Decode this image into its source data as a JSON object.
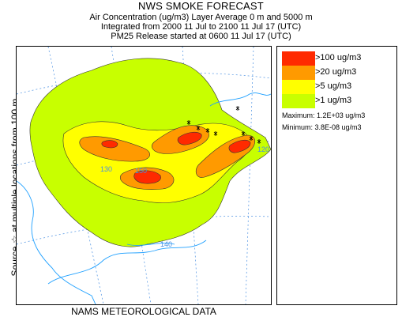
{
  "header": {
    "title": "NWS SMOKE FORECAST",
    "line1": "Air Concentration (ug/m3) Layer Average    0 m and  5000 m",
    "line2": "Integrated from 2000 11 Jul to 2100 11 Jul 17 (UTC)",
    "line3": "PM25 Release started at 0600 11 Jul 17 (UTC)"
  },
  "side_label": "Source ☆  at multiple locations   from   100 m",
  "footer": "NAMS METEOROLOGICAL DATA",
  "map": {
    "graticule_labels": [
      "130",
      "120",
      "150",
      "140"
    ]
  },
  "legend": {
    "items": [
      {
        "label": ">100 ug/m3",
        "color": "#ff2a00"
      },
      {
        "label": ">20 ug/m3",
        "color": "#ff9a00"
      },
      {
        "label": ">5 ug/m3",
        "color": "#ffff00"
      },
      {
        "label": ">1 ug/m3",
        "color": "#c8ff00"
      }
    ],
    "maximum": "Maximum: 1.2E+03 ug/m3",
    "minimum": "Minimum: 3.8E-08 ug/m3"
  },
  "colors": {
    "coast": "#1fa0ff",
    "graticule": "#4a90e2",
    "contour": "#333333"
  }
}
